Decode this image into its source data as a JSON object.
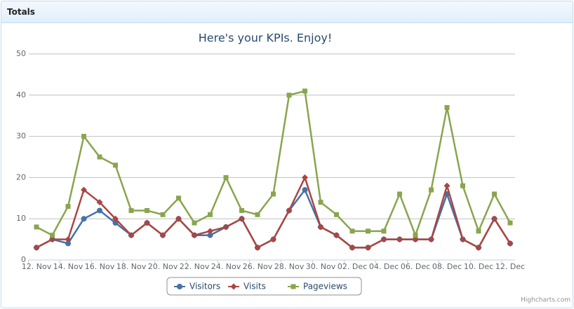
{
  "panel_title": "Totals",
  "chart_data": {
    "type": "line",
    "title": "Here's your KPIs. Enjoy!",
    "categories": [
      "12. Nov",
      null,
      "14. Nov",
      null,
      "16. Nov",
      null,
      "18. Nov",
      null,
      "20. Nov",
      null,
      "22. Nov",
      null,
      "24. Nov",
      null,
      "26. Nov",
      null,
      "28. Nov",
      null,
      "30. Nov",
      null,
      "02. Dec",
      null,
      "04. Dec",
      null,
      "06. Dec",
      null,
      "08. Dec",
      null,
      "10. Dec",
      null,
      "12. Dec"
    ],
    "series": [
      {
        "name": "Visitors",
        "color": "#4572A7",
        "marker": "circle",
        "values": [
          3,
          5,
          4,
          10,
          12,
          9,
          6,
          9,
          6,
          10,
          6,
          6,
          8,
          10,
          3,
          5,
          12,
          17,
          8,
          6,
          3,
          3,
          5,
          5,
          5,
          5,
          16,
          5,
          3,
          10,
          4
        ]
      },
      {
        "name": "Visits",
        "color": "#AA4643",
        "marker": "diamond",
        "values": [
          3,
          5,
          5,
          17,
          14,
          10,
          6,
          9,
          6,
          10,
          6,
          7,
          8,
          10,
          3,
          5,
          12,
          20,
          8,
          6,
          3,
          3,
          5,
          5,
          5,
          5,
          18,
          5,
          3,
          10,
          4
        ]
      },
      {
        "name": "Pageviews",
        "color": "#89A54E",
        "marker": "square",
        "values": [
          8,
          6,
          13,
          30,
          25,
          23,
          12,
          12,
          11,
          15,
          9,
          11,
          20,
          12,
          11,
          16,
          40,
          41,
          14,
          11,
          7,
          7,
          7,
          16,
          6,
          17,
          37,
          18,
          7,
          16,
          9
        ]
      }
    ],
    "ylim": [
      0,
      50
    ],
    "yticks": [
      0,
      10,
      20,
      30,
      40,
      50
    ],
    "grid": true,
    "legend": "bottom",
    "credits": "Highcharts.com"
  }
}
